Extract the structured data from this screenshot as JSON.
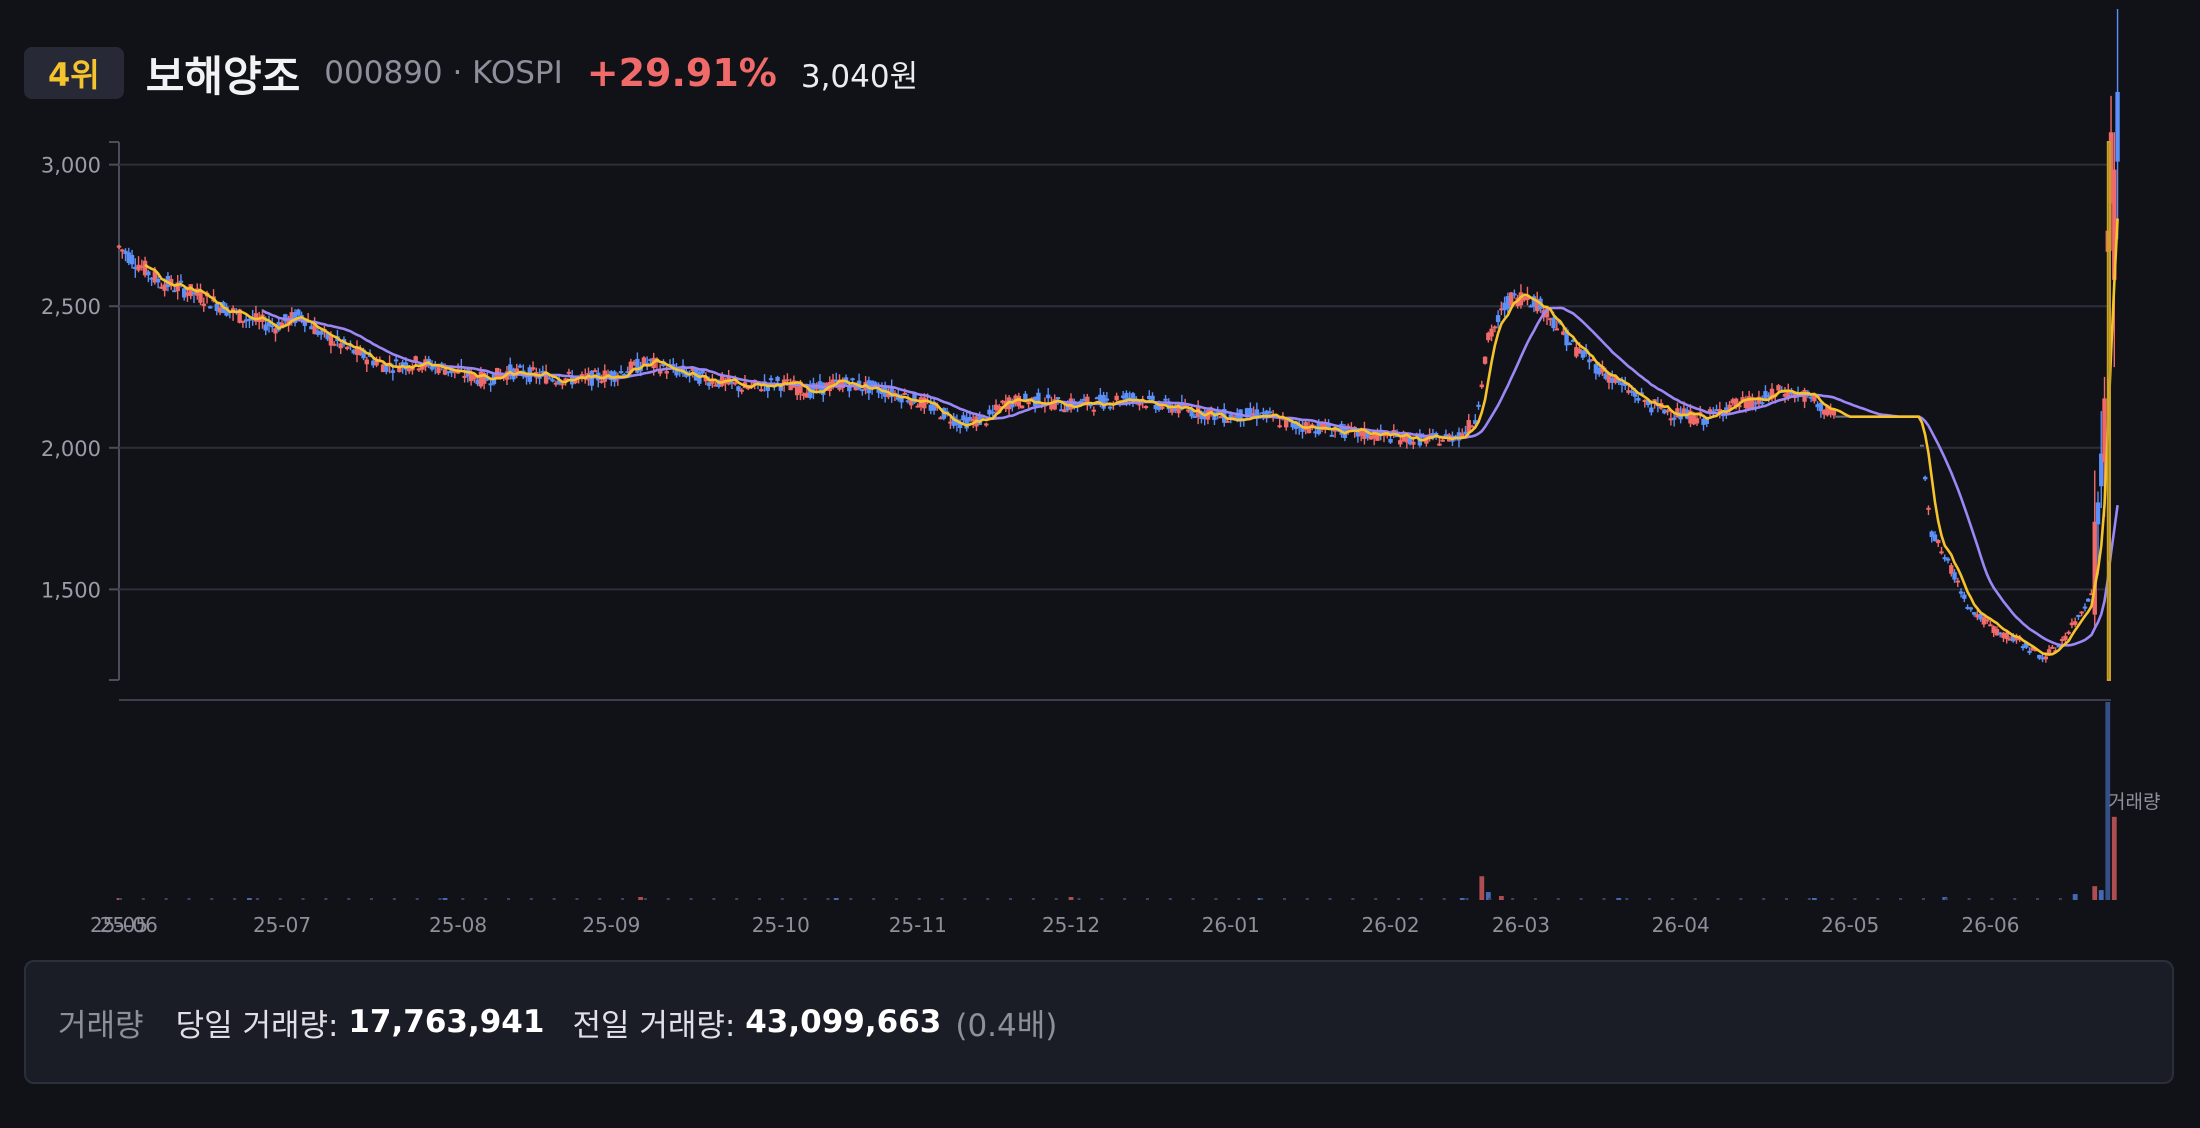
{
  "header": {
    "rank": "4위",
    "name": "보해양조",
    "code_market": "000890 · KOSPI",
    "change": "+29.91%",
    "price": "3,040원"
  },
  "volume_panel": {
    "title": "거래량",
    "today_label": "당일 거래량:",
    "today_value": "17,763,941",
    "prev_label": "전일 거래량:",
    "prev_value": "43,099,663",
    "ratio": "(0.4배)"
  },
  "colors": {
    "up": "#f06a6a",
    "down": "#5b8ff9",
    "ma_short": "#f5c32c",
    "ma_long": "#9b87f5",
    "highlight": "#f5c32c"
  },
  "chart_data": {
    "type": "candlestick",
    "y_ticks": [
      "3,000",
      "2,500",
      "2,000",
      "1,500"
    ],
    "y_tick_values": [
      3000,
      2500,
      2000,
      1500
    ],
    "ylim": [
      1180,
      3080
    ],
    "x_ticks": [
      "25-05",
      "25-06",
      "25-07",
      "25-08",
      "25-09",
      "25-10",
      "25-11",
      "25-12",
      "26-01",
      "26-02",
      "26-03",
      "26-04",
      "26-05",
      "26-06"
    ],
    "x_tick_days": [
      0,
      3,
      50,
      104,
      151,
      203,
      245,
      292,
      341,
      390,
      430,
      479,
      531,
      574
    ],
    "x_range_days": [
      0,
      607
    ],
    "volume_label": "거래량",
    "price_anchors": [
      [
        0,
        2710
      ],
      [
        6,
        2650
      ],
      [
        12,
        2590
      ],
      [
        20,
        2560
      ],
      [
        30,
        2510
      ],
      [
        38,
        2460
      ],
      [
        48,
        2430
      ],
      [
        56,
        2470
      ],
      [
        62,
        2400
      ],
      [
        72,
        2340
      ],
      [
        82,
        2290
      ],
      [
        92,
        2300
      ],
      [
        100,
        2280
      ],
      [
        112,
        2240
      ],
      [
        120,
        2270
      ],
      [
        132,
        2250
      ],
      [
        142,
        2240
      ],
      [
        152,
        2260
      ],
      [
        162,
        2300
      ],
      [
        172,
        2270
      ],
      [
        182,
        2240
      ],
      [
        192,
        2210
      ],
      [
        202,
        2230
      ],
      [
        212,
        2200
      ],
      [
        222,
        2230
      ],
      [
        232,
        2210
      ],
      [
        242,
        2180
      ],
      [
        250,
        2140
      ],
      [
        258,
        2090
      ],
      [
        266,
        2100
      ],
      [
        272,
        2160
      ],
      [
        282,
        2170
      ],
      [
        290,
        2150
      ],
      [
        300,
        2160
      ],
      [
        310,
        2180
      ],
      [
        320,
        2150
      ],
      [
        330,
        2130
      ],
      [
        340,
        2110
      ],
      [
        350,
        2120
      ],
      [
        360,
        2080
      ],
      [
        370,
        2070
      ],
      [
        380,
        2050
      ],
      [
        390,
        2040
      ],
      [
        398,
        2030
      ],
      [
        406,
        2030
      ],
      [
        412,
        2050
      ],
      [
        416,
        2100
      ],
      [
        420,
        2380
      ],
      [
        426,
        2520
      ],
      [
        432,
        2540
      ],
      [
        438,
        2480
      ],
      [
        446,
        2360
      ],
      [
        454,
        2280
      ],
      [
        462,
        2210
      ],
      [
        470,
        2150
      ],
      [
        478,
        2120
      ],
      [
        486,
        2100
      ],
      [
        494,
        2150
      ],
      [
        502,
        2160
      ],
      [
        510,
        2200
      ],
      [
        518,
        2180
      ],
      [
        526,
        2110
      ],
      [
        534,
        2110
      ],
      [
        542,
        2110
      ],
      [
        548,
        2110
      ],
      [
        552,
        2110
      ],
      [
        556,
        1700
      ],
      [
        562,
        1570
      ],
      [
        568,
        1430
      ],
      [
        576,
        1350
      ],
      [
        584,
        1310
      ],
      [
        590,
        1260
      ],
      [
        594,
        1290
      ],
      [
        598,
        1350
      ],
      [
        602,
        1420
      ],
      [
        605,
        1500
      ],
      [
        607,
        1700
      ],
      [
        609,
        2200
      ],
      [
        611,
        2900
      ],
      [
        613,
        2980
      ]
    ],
    "volume": [
      [
        0,
        0.01
      ],
      [
        40,
        0.01
      ],
      [
        100,
        0.01
      ],
      [
        160,
        0.015
      ],
      [
        220,
        0.01
      ],
      [
        292,
        0.015
      ],
      [
        350,
        0.01
      ],
      [
        412,
        0.01
      ],
      [
        418,
        0.12
      ],
      [
        420,
        0.04
      ],
      [
        424,
        0.02
      ],
      [
        460,
        0.01
      ],
      [
        520,
        0.01
      ],
      [
        560,
        0.015
      ],
      [
        600,
        0.03
      ],
      [
        606,
        0.07
      ],
      [
        608,
        0.05
      ],
      [
        610,
        1.0
      ],
      [
        612,
        0.42
      ]
    ],
    "volume_colors_up_days": [
      0,
      160,
      292,
      418,
      424,
      606,
      612
    ]
  }
}
